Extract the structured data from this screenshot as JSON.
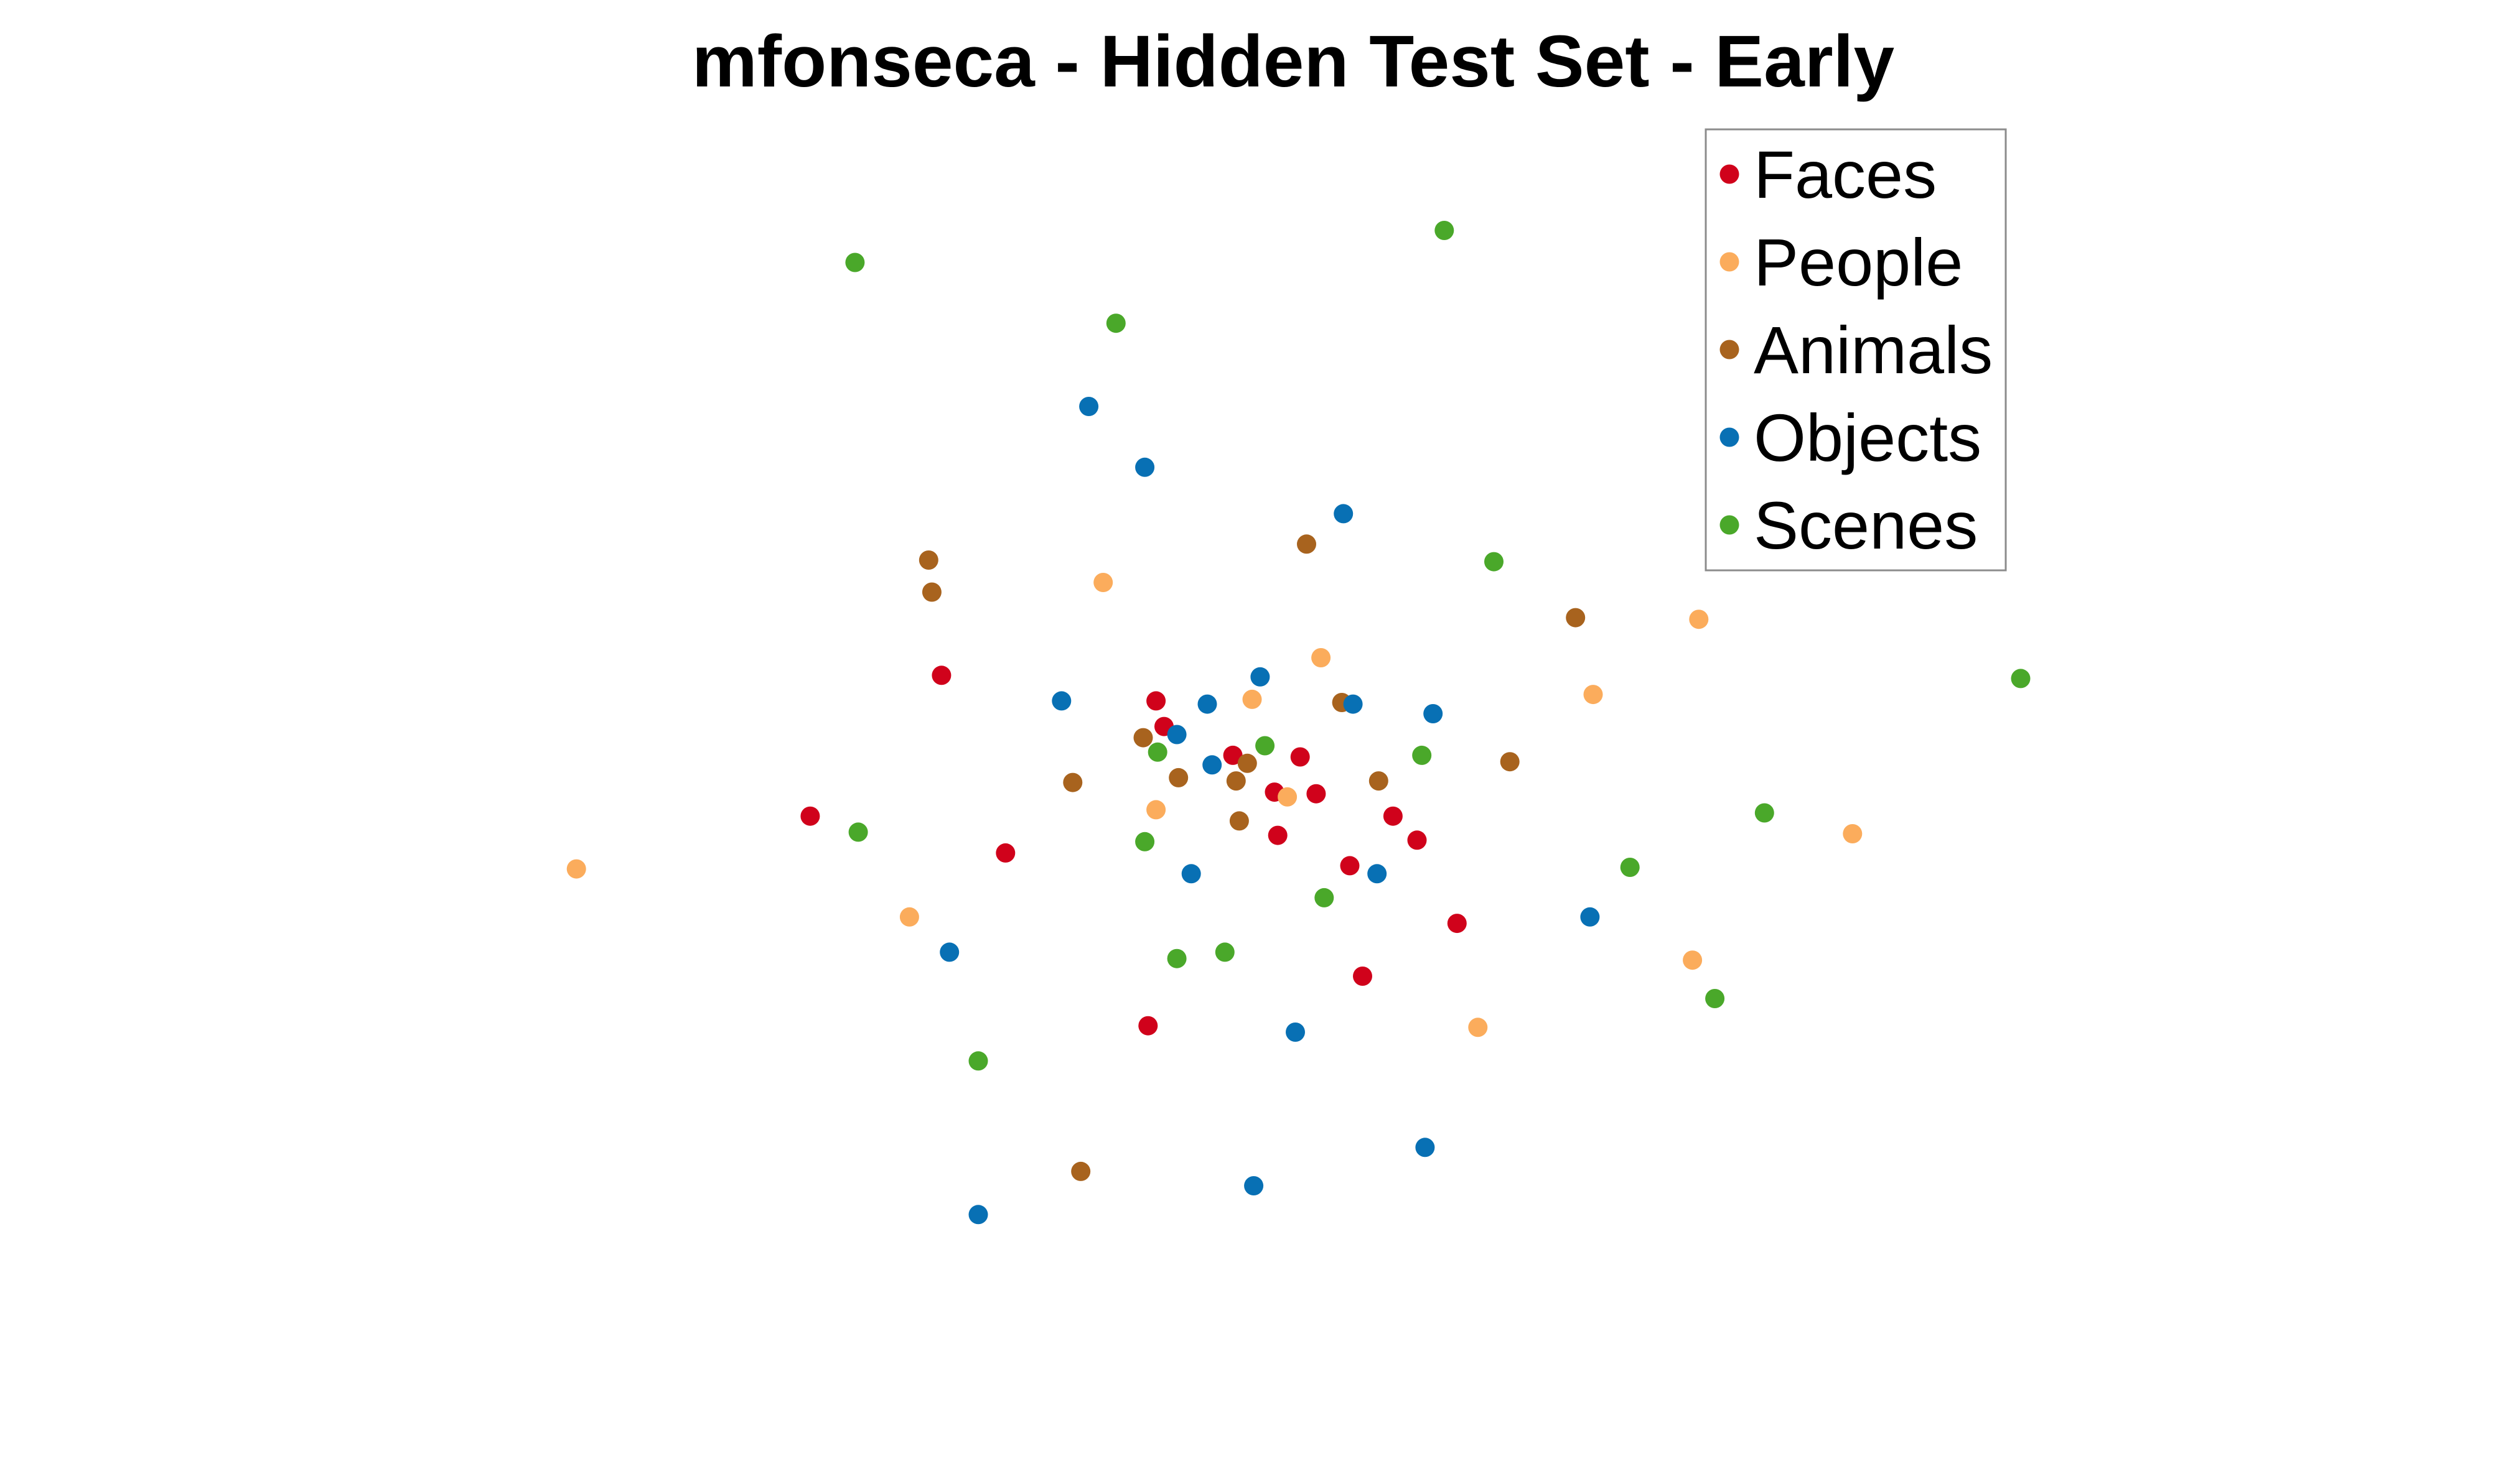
{
  "chart_data": {
    "type": "scatter",
    "title": "mfonseca - Hidden Test Set - Early",
    "xlabel": "",
    "ylabel": "",
    "axes_visible": false,
    "grid": false,
    "legend_position": "top-right",
    "series": [
      {
        "name": "Faces",
        "color": "#d0021b",
        "points": [
          [
            588,
            422
          ],
          [
            722,
            438
          ],
          [
            727,
            454
          ],
          [
            770,
            472
          ],
          [
            812,
            473
          ],
          [
            796,
            495
          ],
          [
            822,
            496
          ],
          [
            870,
            510
          ],
          [
            885,
            525
          ],
          [
            798,
            522
          ],
          [
            843,
            541
          ],
          [
            506,
            510
          ],
          [
            628,
            533
          ],
          [
            910,
            577
          ],
          [
            851,
            610
          ],
          [
            717,
            641
          ]
        ]
      },
      {
        "name": "People",
        "color": "#fbac5c",
        "points": [
          [
            689,
            364
          ],
          [
            825,
            411
          ],
          [
            782,
            437
          ],
          [
            995,
            434
          ],
          [
            1061,
            387
          ],
          [
            722,
            506
          ],
          [
            804,
            498
          ],
          [
            1157,
            521
          ],
          [
            360,
            543
          ],
          [
            568,
            573
          ],
          [
            1057,
            600
          ],
          [
            923,
            642
          ]
        ]
      },
      {
        "name": "Animals",
        "color": "#a8631e",
        "points": [
          [
            580,
            350
          ],
          [
            582,
            370
          ],
          [
            816,
            340
          ],
          [
            984,
            386
          ],
          [
            838,
            439
          ],
          [
            714,
            461
          ],
          [
            779,
            477
          ],
          [
            736,
            486
          ],
          [
            772,
            488
          ],
          [
            670,
            489
          ],
          [
            861,
            488
          ],
          [
            943,
            476
          ],
          [
            774,
            513
          ],
          [
            675,
            732
          ]
        ]
      },
      {
        "name": "Objects",
        "color": "#0870b4",
        "points": [
          [
            680,
            254
          ],
          [
            715,
            292
          ],
          [
            839,
            321
          ],
          [
            787,
            423
          ],
          [
            663,
            438
          ],
          [
            754,
            440
          ],
          [
            845,
            440
          ],
          [
            895,
            446
          ],
          [
            735,
            459
          ],
          [
            757,
            478
          ],
          [
            744,
            546
          ],
          [
            860,
            546
          ],
          [
            993,
            573
          ],
          [
            593,
            595
          ],
          [
            809,
            645
          ],
          [
            890,
            717
          ],
          [
            783,
            741
          ],
          [
            611,
            759
          ]
        ]
      },
      {
        "name": "Scenes",
        "color": "#4aa82a",
        "points": [
          [
            534,
            164
          ],
          [
            902,
            144
          ],
          [
            697,
            202
          ],
          [
            933,
            351
          ],
          [
            1262,
            424
          ],
          [
            790,
            466
          ],
          [
            723,
            470
          ],
          [
            888,
            472
          ],
          [
            536,
            520
          ],
          [
            715,
            526
          ],
          [
            1102,
            508
          ],
          [
            1018,
            542
          ],
          [
            827,
            561
          ],
          [
            765,
            595
          ],
          [
            735,
            599
          ],
          [
            1071,
            624
          ],
          [
            611,
            663
          ]
        ]
      }
    ]
  }
}
